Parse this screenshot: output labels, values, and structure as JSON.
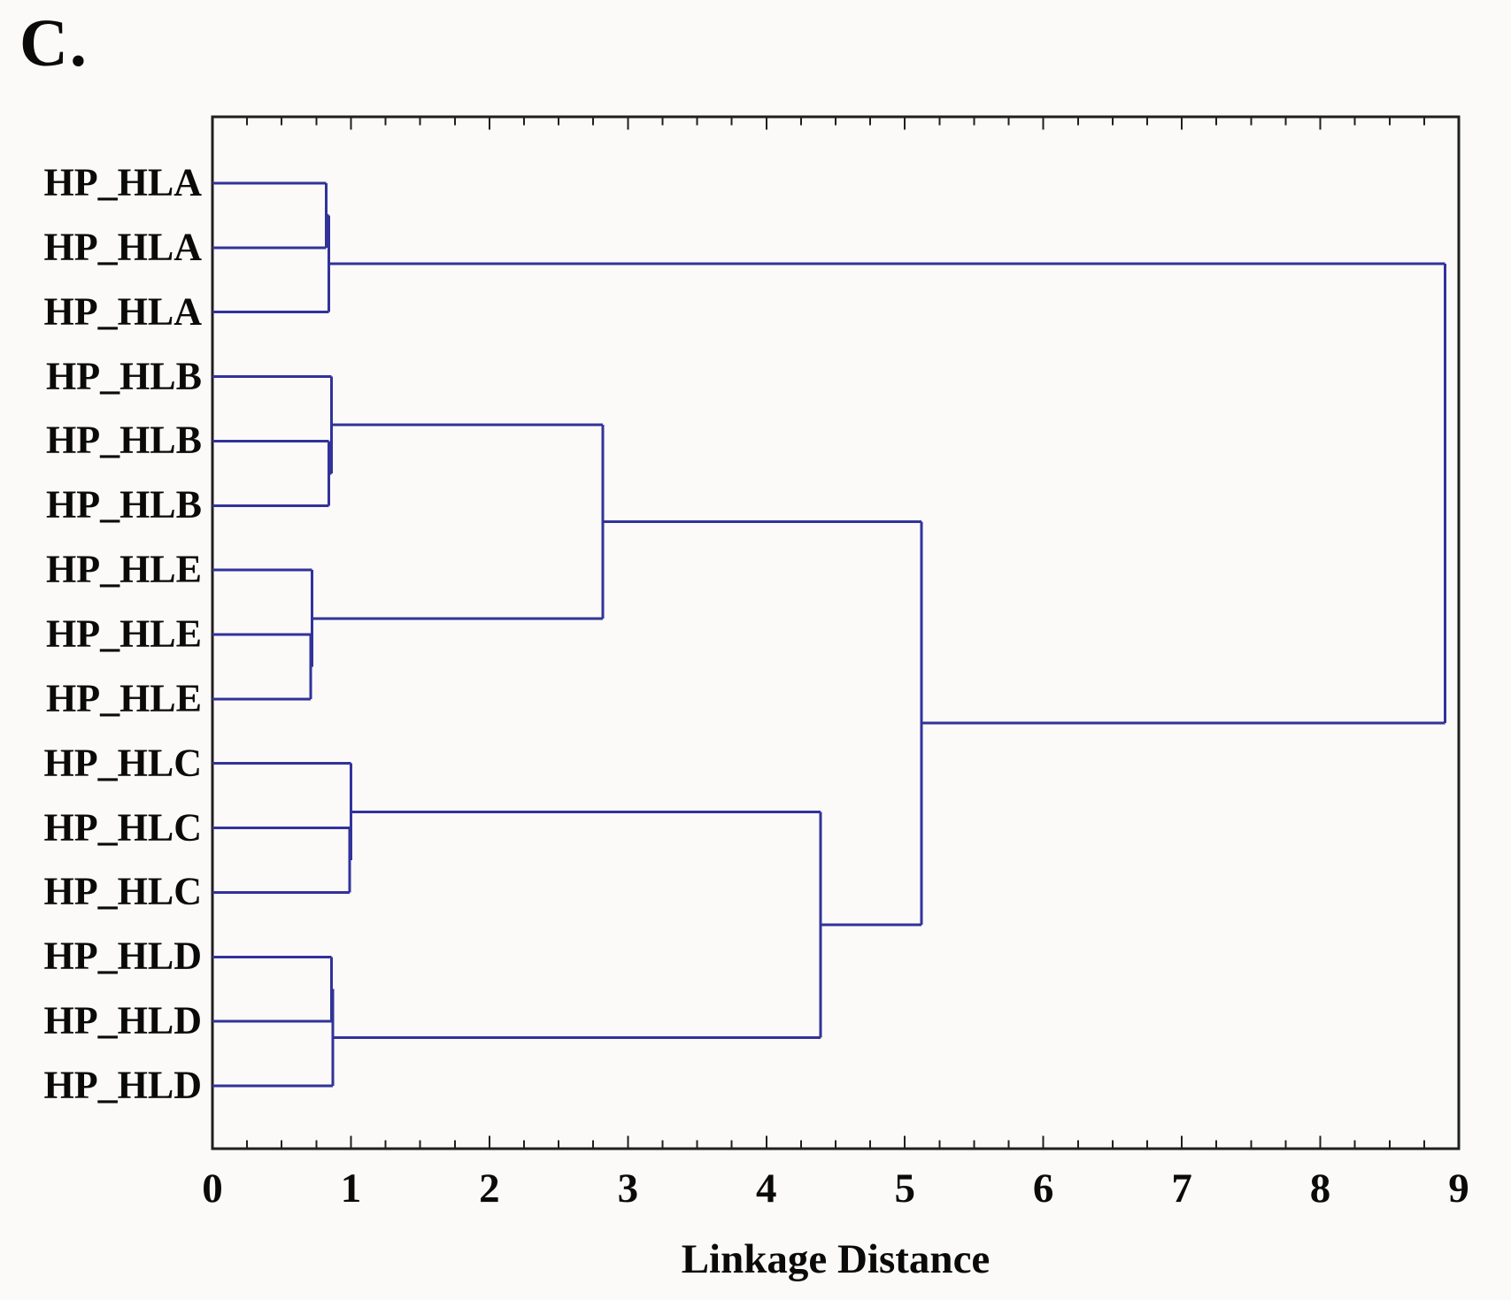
{
  "figure_label": "C.",
  "chart_data": {
    "type": "dendrogram",
    "orientation": "horizontal",
    "title": "",
    "xlabel": "Linkage Distance",
    "xlim": [
      0,
      9
    ],
    "x_tick_labels": [
      "0",
      "1",
      "2",
      "3",
      "4",
      "5",
      "6",
      "7",
      "8",
      "9"
    ],
    "minor_tick_step": 0.25,
    "grid": false,
    "legend": false,
    "line_color": "#32329b",
    "frame_color": "#1f1f1f",
    "leaves": [
      "HP_HLA",
      "HP_HLA",
      "HP_HLA",
      "HP_HLB",
      "HP_HLB",
      "HP_HLB",
      "HP_HLE",
      "HP_HLE",
      "HP_HLE",
      "HP_HLC",
      "HP_HLC",
      "HP_HLC",
      "HP_HLD",
      "HP_HLD",
      "HP_HLD"
    ],
    "merges": [
      {
        "id": "A12",
        "a": "L0",
        "b": "L1",
        "d": 0.82
      },
      {
        "id": "A",
        "a": "A12",
        "b": "L2",
        "d": 0.84
      },
      {
        "id": "B23",
        "a": "L4",
        "b": "L5",
        "d": 0.84
      },
      {
        "id": "B",
        "a": "L3",
        "b": "B23",
        "d": 0.86
      },
      {
        "id": "E23",
        "a": "L7",
        "b": "L8",
        "d": 0.71
      },
      {
        "id": "E",
        "a": "L6",
        "b": "E23",
        "d": 0.72
      },
      {
        "id": "BE",
        "a": "B",
        "b": "E",
        "d": 2.82
      },
      {
        "id": "C23",
        "a": "L10",
        "b": "L11",
        "d": 0.99
      },
      {
        "id": "C",
        "a": "L9",
        "b": "C23",
        "d": 1.0
      },
      {
        "id": "D12",
        "a": "L12",
        "b": "L13",
        "d": 0.86
      },
      {
        "id": "D",
        "a": "D12",
        "b": "L14",
        "d": 0.87
      },
      {
        "id": "CD",
        "a": "C",
        "b": "D",
        "d": 4.39
      },
      {
        "id": "BECD",
        "a": "BE",
        "b": "CD",
        "d": 5.12
      },
      {
        "id": "ROOT",
        "a": "A",
        "b": "BECD",
        "d": 8.9
      }
    ]
  }
}
